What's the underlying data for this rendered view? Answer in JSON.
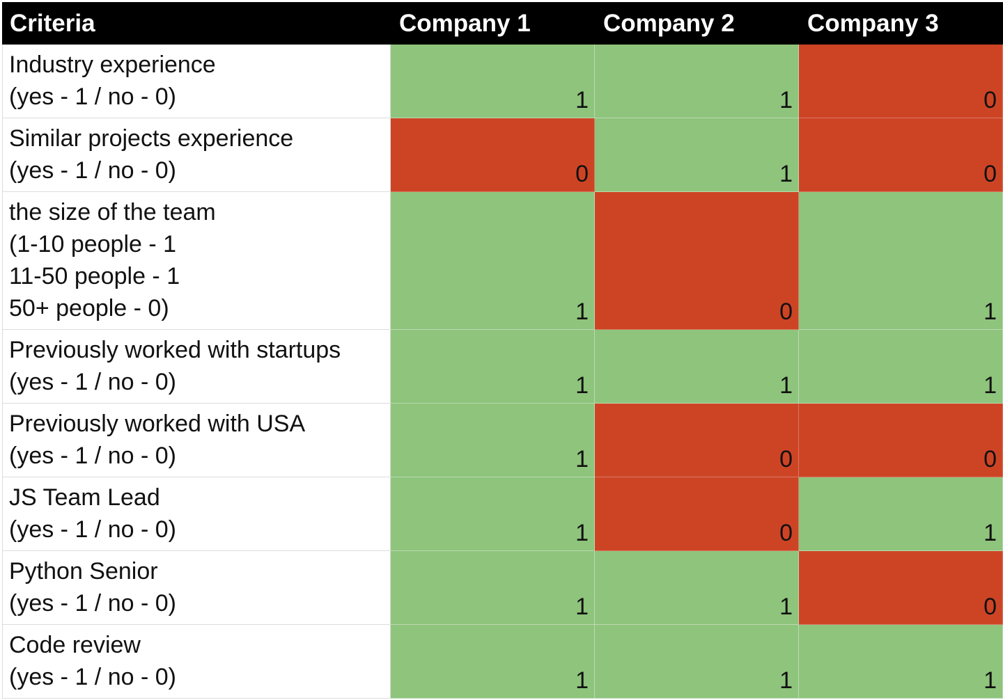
{
  "table": {
    "headers": [
      "Criteria",
      "Company 1",
      "Company 2",
      "Company 3"
    ],
    "rows": [
      {
        "criteria": "Industry experience\n(yes - 1 / no - 0)",
        "scores": [
          "1",
          "1",
          "0"
        ]
      },
      {
        "criteria": "Similar projects experience\n(yes - 1 / no - 0)",
        "scores": [
          "0",
          "1",
          "0"
        ]
      },
      {
        "criteria": "the size of the team\n(1-10 people - 1\n11-50 people - 1\n50+ people -  0)",
        "scores": [
          "1",
          "0",
          "1"
        ]
      },
      {
        "criteria": "Previously worked with startups\n(yes - 1 / no - 0)",
        "scores": [
          "1",
          "1",
          "1"
        ]
      },
      {
        "criteria": "Previously worked with USA\n(yes - 1 / no - 0)",
        "scores": [
          "1",
          "0",
          "0"
        ]
      },
      {
        "criteria": "JS Team Lead\n(yes - 1 / no - 0)",
        "scores": [
          "1",
          "0",
          "1"
        ]
      },
      {
        "criteria": "Python Senior\n(yes - 1 / no - 0)",
        "scores": [
          "1",
          "1",
          "0"
        ]
      },
      {
        "criteria": "Code review\n(yes - 1 / no - 0)",
        "scores": [
          "1",
          "1",
          "1"
        ]
      }
    ]
  },
  "colors": {
    "header_bg": "#000000",
    "header_text": "#ffffff",
    "score_1_fill": "#8ec47c",
    "score_0_fill": "#cd4425"
  }
}
